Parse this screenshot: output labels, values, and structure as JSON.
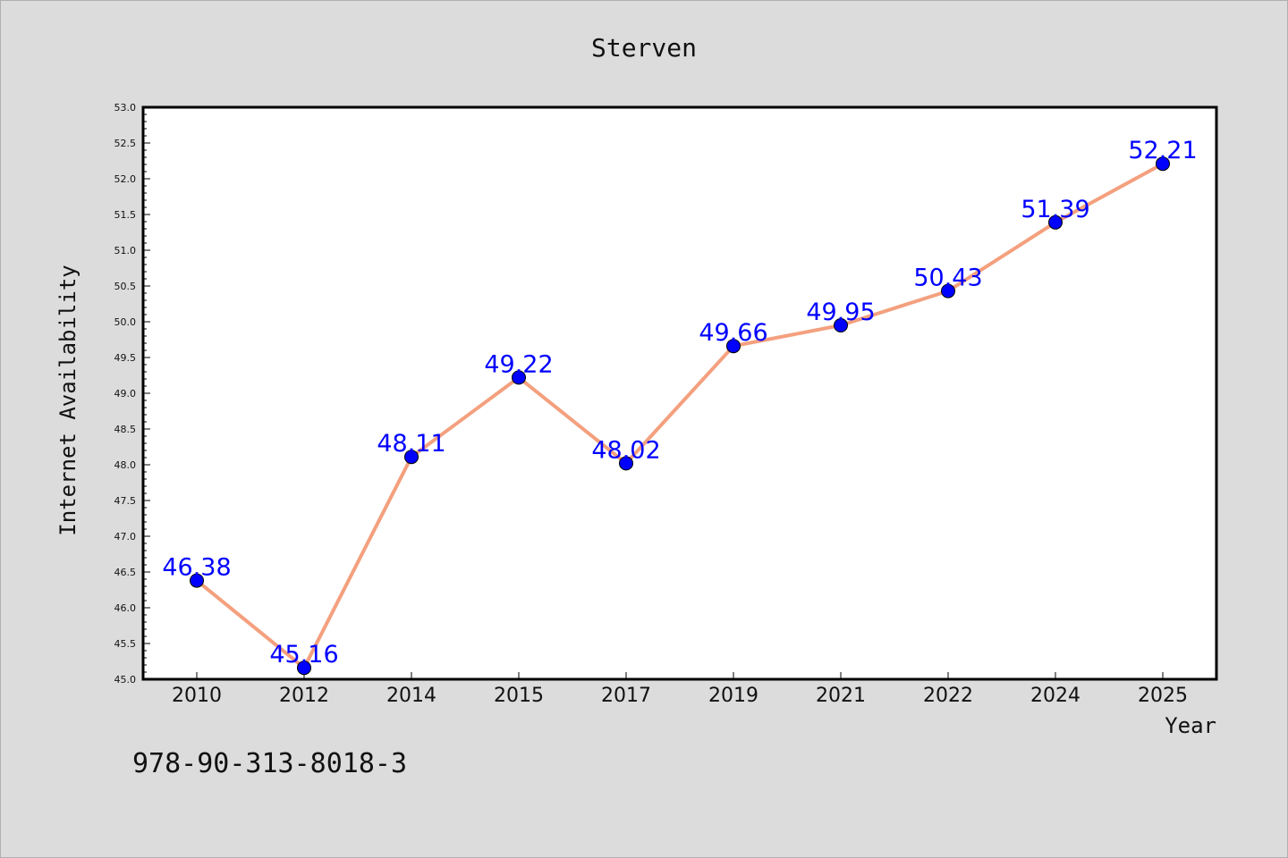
{
  "chart_data": {
    "type": "line",
    "title": "Sterven",
    "xlabel": "Year",
    "ylabel": "Internet Availability",
    "categories": [
      "2010",
      "2012",
      "2014",
      "2015",
      "2017",
      "2019",
      "2021",
      "2022",
      "2024",
      "2025"
    ],
    "values": [
      46.38,
      45.16,
      48.11,
      49.22,
      48.02,
      49.66,
      49.95,
      50.43,
      51.39,
      52.21
    ],
    "value_labels": [
      "46.38",
      "45.16",
      "48.11",
      "49.22",
      "48.02",
      "49.66",
      "49.95",
      "50.43",
      "51.39",
      "52.21"
    ],
    "ylim": [
      45.0,
      53.0
    ],
    "yticks": [
      "45.0",
      "45.5",
      "46.0",
      "46.5",
      "47.0",
      "47.5",
      "48.0",
      "48.5",
      "49.0",
      "49.5",
      "50.0",
      "50.5",
      "51.0",
      "51.5",
      "52.0",
      "52.5",
      "53.0"
    ],
    "grid": false,
    "line_color": "#f4a07e",
    "marker_color": "#0000ff",
    "label_color": "#0000ff"
  },
  "footer": {
    "isbn": "978-90-313-8018-3"
  }
}
